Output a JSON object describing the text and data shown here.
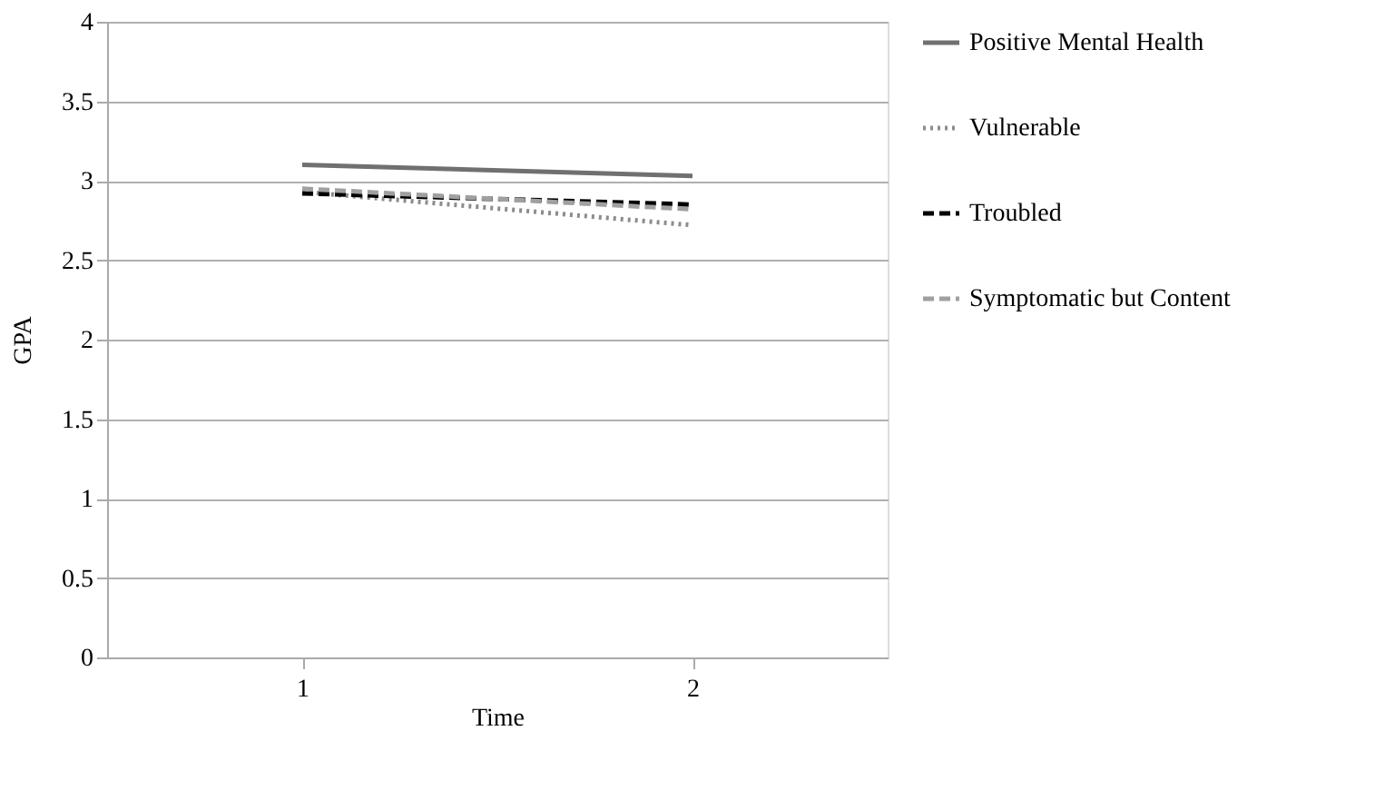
{
  "chart_data": {
    "type": "line",
    "xlabel": "Time",
    "ylabel": "GPA",
    "categories": [
      "1",
      "2"
    ],
    "series": [
      {
        "name": "Positive Mental Health",
        "color": "#707070",
        "line_style": "solid",
        "values": [
          3.1,
          3.03
        ]
      },
      {
        "name": "Vulnerable",
        "color": "#8c8c8c",
        "line_style": "dotted",
        "values": [
          2.93,
          2.72
        ]
      },
      {
        "name": "Troubled",
        "color": "#000000",
        "line_style": "dashed",
        "values": [
          2.92,
          2.85
        ]
      },
      {
        "name": "Symptomatic but Content",
        "color": "#a0a0a0",
        "line_style": "dashed",
        "values": [
          2.95,
          2.82
        ]
      }
    ],
    "ylim": [
      0,
      4
    ],
    "yticks": [
      0,
      0.5,
      1,
      1.5,
      2,
      2.5,
      3,
      3.5,
      4
    ],
    "grid": "y",
    "legend": "right",
    "marker": "none"
  }
}
